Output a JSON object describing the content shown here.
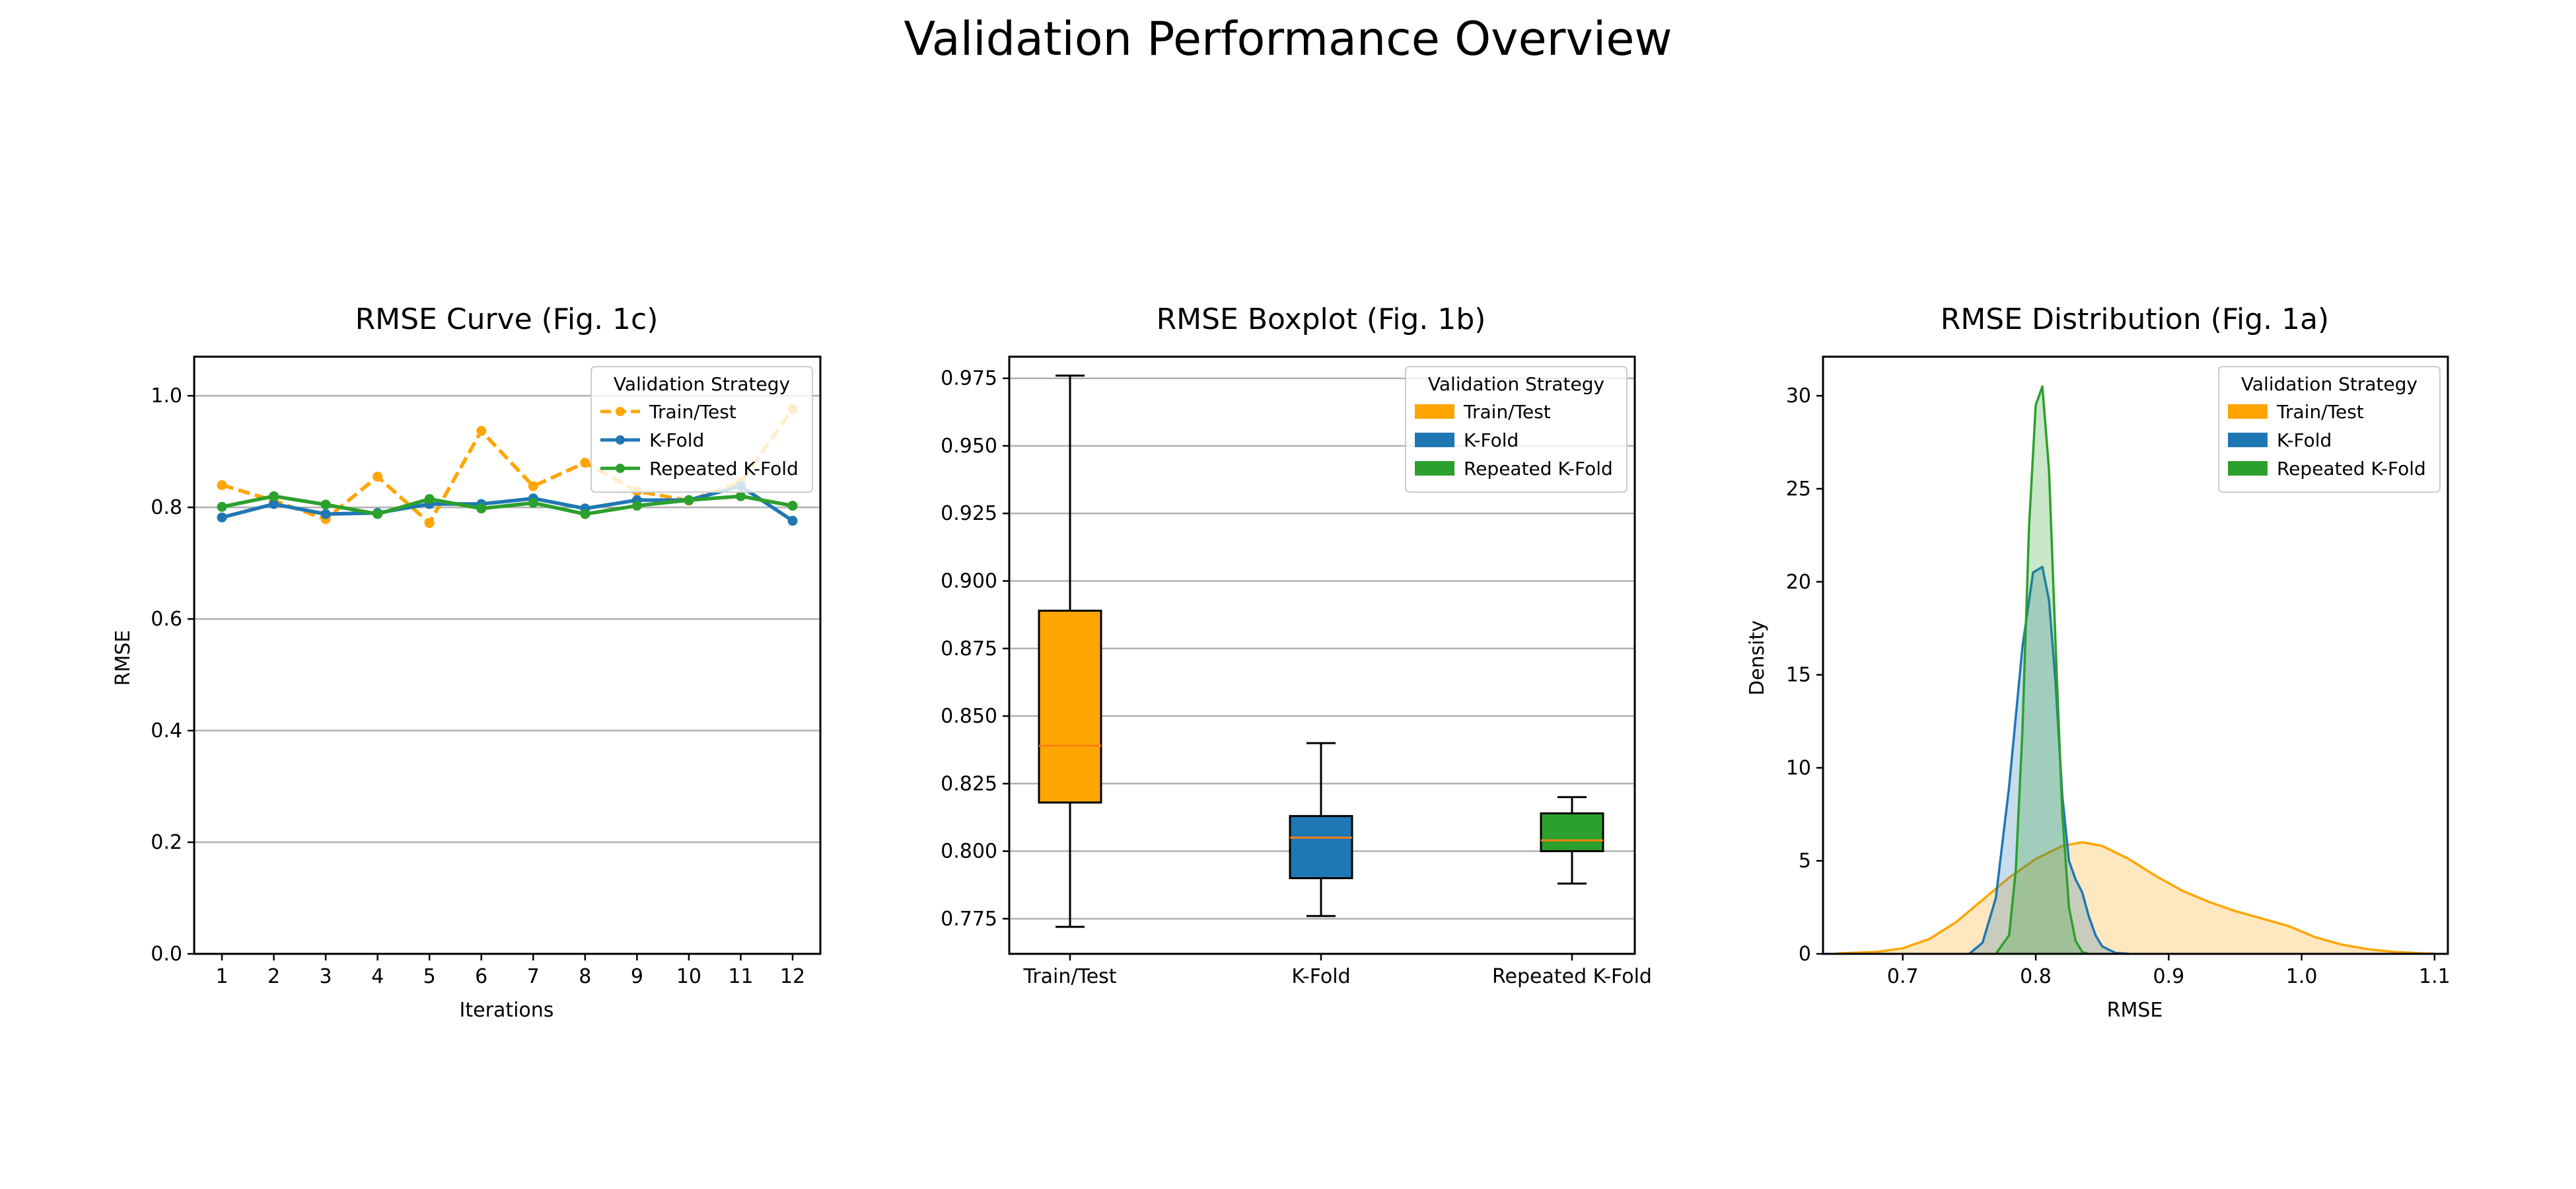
{
  "figure": {
    "title": "Validation Performance Overview"
  },
  "colors": {
    "Train/Test": "#ffa500",
    "K-Fold": "#1f77b4",
    "Repeated K-Fold": "#2ca02c",
    "median_line": "#ff7f0e",
    "grid": "#b0b0b0"
  },
  "chart_data": [
    {
      "type": "line",
      "title": "RMSE Curve (Fig. 1c)",
      "xlabel": "Iterations",
      "ylabel": "RMSE",
      "x": [
        1,
        2,
        3,
        4,
        5,
        6,
        7,
        8,
        9,
        10,
        11,
        12
      ],
      "xticks": [
        "1",
        "2",
        "3",
        "4",
        "5",
        "6",
        "7",
        "8",
        "9",
        "10",
        "11",
        "12"
      ],
      "ylim": [
        0,
        1.07
      ],
      "yticks": [
        "0.0",
        "0.2",
        "0.4",
        "0.6",
        "0.8",
        "1.0"
      ],
      "grid": "horizontal",
      "legend": {
        "title": "Validation Strategy",
        "placement": "top-right"
      },
      "series": [
        {
          "name": "Train/Test",
          "style": "dashed",
          "values": [
            0.84,
            0.812,
            0.779,
            0.855,
            0.772,
            0.937,
            0.838,
            0.88,
            0.829,
            0.812,
            0.845,
            0.976
          ]
        },
        {
          "name": "K-Fold",
          "style": "solid",
          "values": [
            0.782,
            0.806,
            0.788,
            0.79,
            0.806,
            0.806,
            0.816,
            0.798,
            0.813,
            0.813,
            0.838,
            0.776
          ]
        },
        {
          "name": "Repeated K-Fold",
          "style": "solid",
          "values": [
            0.801,
            0.82,
            0.805,
            0.788,
            0.815,
            0.798,
            0.808,
            0.788,
            0.803,
            0.813,
            0.82,
            0.803
          ]
        }
      ]
    },
    {
      "type": "box",
      "title": "RMSE Boxplot (Fig. 1b)",
      "categories": [
        "Train/Test",
        "K-Fold",
        "Repeated K-Fold"
      ],
      "ylim": [
        0.762,
        0.983
      ],
      "yticks": [
        "0.775",
        "0.800",
        "0.825",
        "0.850",
        "0.875",
        "0.900",
        "0.925",
        "0.950",
        "0.975"
      ],
      "grid": "horizontal",
      "legend": {
        "title": "Validation Strategy",
        "placement": "top-right"
      },
      "boxes": [
        {
          "name": "Train/Test",
          "min": 0.772,
          "q1": 0.818,
          "median": 0.839,
          "q3": 0.889,
          "max": 0.976
        },
        {
          "name": "K-Fold",
          "min": 0.776,
          "q1": 0.79,
          "median": 0.805,
          "q3": 0.813,
          "max": 0.84
        },
        {
          "name": "Repeated K-Fold",
          "min": 0.788,
          "q1": 0.8,
          "median": 0.804,
          "q3": 0.814,
          "max": 0.82
        }
      ]
    },
    {
      "type": "area",
      "title": "RMSE Distribution (Fig. 1a)",
      "xlabel": "RMSE",
      "ylabel": "Density",
      "xlim": [
        0.64,
        1.11
      ],
      "ylim": [
        0,
        32.1
      ],
      "xticks": [
        "0.7",
        "0.8",
        "0.9",
        "1.0",
        "1.1"
      ],
      "yticks": [
        "0",
        "5",
        "10",
        "15",
        "20",
        "25",
        "30"
      ],
      "legend": {
        "title": "Validation Strategy",
        "placement": "top-right"
      },
      "series": [
        {
          "name": "Train/Test",
          "x": [
            0.65,
            0.68,
            0.7,
            0.72,
            0.74,
            0.76,
            0.78,
            0.8,
            0.82,
            0.835,
            0.85,
            0.87,
            0.89,
            0.91,
            0.93,
            0.95,
            0.97,
            0.99,
            1.01,
            1.03,
            1.05,
            1.07,
            1.09,
            1.1
          ],
          "values": [
            0.02,
            0.1,
            0.3,
            0.8,
            1.7,
            2.9,
            4.1,
            5.1,
            5.8,
            6.0,
            5.8,
            5.1,
            4.2,
            3.4,
            2.8,
            2.3,
            1.9,
            1.5,
            0.9,
            0.5,
            0.25,
            0.1,
            0.03,
            0.01
          ]
        },
        {
          "name": "K-Fold",
          "x": [
            0.75,
            0.76,
            0.77,
            0.78,
            0.79,
            0.798,
            0.805,
            0.81,
            0.815,
            0.82,
            0.825,
            0.83,
            0.835,
            0.84,
            0.845,
            0.85,
            0.86,
            0.87
          ],
          "values": [
            0.0,
            0.6,
            3.0,
            9.0,
            16.5,
            20.5,
            20.8,
            19.0,
            14.5,
            8.5,
            5.0,
            4.0,
            3.3,
            2.0,
            1.0,
            0.4,
            0.05,
            0.0
          ]
        },
        {
          "name": "Repeated K-Fold",
          "x": [
            0.77,
            0.78,
            0.785,
            0.79,
            0.795,
            0.8,
            0.805,
            0.81,
            0.815,
            0.82,
            0.825,
            0.83,
            0.835,
            0.84
          ],
          "values": [
            0.0,
            1.0,
            4.5,
            12.0,
            23.0,
            29.5,
            30.5,
            26.0,
            16.5,
            7.5,
            2.5,
            0.7,
            0.1,
            0.0
          ]
        }
      ]
    }
  ]
}
